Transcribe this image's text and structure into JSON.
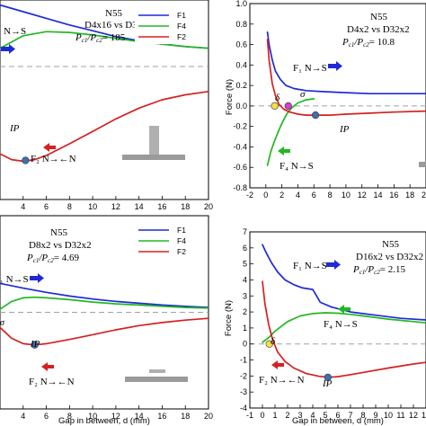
{
  "chart_data": [
    {
      "type": "line",
      "panel": "top-left",
      "annotations": {
        "n55": "N55",
        "title": "D4x16 vs D32x2",
        "ratio_prefix": "P",
        "ratio_value": "= 185",
        "ip": "IP"
      },
      "legend": [
        "F1",
        "F4",
        "F2"
      ],
      "arrow_labels": [
        {
          "text": "N→S",
          "color": "#1f2ad6",
          "dir": "right"
        },
        {
          "text": "F₂ N→←N",
          "color": "#d62020",
          "dir": "left"
        }
      ],
      "xlim": [
        2,
        20
      ],
      "ylim": [
        -1.6,
        0.8
      ],
      "xticks": [
        4,
        6,
        8,
        10,
        12,
        14,
        16,
        18,
        20
      ],
      "series": [
        {
          "name": "F1",
          "color": "#1f2ad6",
          "x": [
            0,
            2,
            4,
            6,
            8,
            10,
            12,
            14,
            16,
            18,
            20
          ],
          "y": [
            0.82,
            0.74,
            0.66,
            0.58,
            0.5,
            0.43,
            0.36,
            0.31,
            0.27,
            0.24,
            0.22
          ]
        },
        {
          "name": "F4",
          "color": "#20b820",
          "x": [
            0,
            2,
            4,
            6,
            8,
            10,
            12,
            14,
            16,
            18,
            20
          ],
          "y": [
            -0.05,
            0.22,
            0.37,
            0.42,
            0.41,
            0.38,
            0.34,
            0.3,
            0.27,
            0.24,
            0.22
          ]
        },
        {
          "name": "F2",
          "color": "#d62020",
          "x": [
            0,
            1,
            2,
            3,
            4,
            5,
            6,
            8,
            10,
            12,
            14,
            16,
            18,
            20
          ],
          "y": [
            -0.3,
            -0.8,
            -1.05,
            -1.12,
            -1.14,
            -1.12,
            -1.07,
            -0.93,
            -0.78,
            -0.63,
            -0.5,
            -0.4,
            -0.34,
            -0.3
          ]
        }
      ],
      "markers": [
        {
          "label": "IP",
          "x": 4.2,
          "y": -1.13
        }
      ]
    },
    {
      "type": "line",
      "panel": "top-right",
      "annotations": {
        "n55": "N55",
        "title": "D4x2 vs D32x2",
        "ratio_prefix": "P",
        "ratio_value": "= 10.8",
        "ip": "IP",
        "delta": "δ",
        "sigma": "σ"
      },
      "arrow_labels": [
        {
          "text": "F₁ N→S",
          "color": "#1f2ad6",
          "dir": "right"
        },
        {
          "text": "F₄ N→S",
          "color": "#20b820",
          "dir": "left"
        }
      ],
      "ylabel": "Force (N)",
      "xlim": [
        -2,
        20
      ],
      "ylim": [
        -0.8,
        1.0
      ],
      "xticks": [
        -2,
        0,
        2,
        4,
        6,
        8,
        10,
        12,
        14,
        16,
        18,
        20
      ],
      "yticks": [
        -0.8,
        -0.6,
        -0.4,
        -0.2,
        0.0,
        0.2,
        0.4,
        0.6,
        0.8,
        1.0
      ],
      "series": [
        {
          "name": "F1",
          "color": "#1f2ad6",
          "x": [
            0.2,
            0.4,
            0.8,
            1.2,
            1.8,
            2.5,
            3.5,
            5,
            7,
            10,
            13,
            16,
            20
          ],
          "y": [
            0.72,
            0.6,
            0.45,
            0.34,
            0.26,
            0.2,
            0.17,
            0.15,
            0.14,
            0.13,
            0.12,
            0.12,
            0.12
          ]
        },
        {
          "name": "F4",
          "color": "#20b820",
          "x": [
            0.2,
            0.6,
            1.0,
            1.5,
            2.0,
            2.6,
            3.2,
            4.0,
            5.0,
            6.0
          ],
          "y": [
            -0.58,
            -0.45,
            -0.36,
            -0.26,
            -0.17,
            -0.08,
            -0.02,
            0.03,
            0.06,
            0.07
          ]
        },
        {
          "name": "F2",
          "color": "#d62020",
          "x": [
            0.2,
            0.4,
            0.8,
            1.2,
            1.6,
            2.2,
            3.0,
            4.0,
            5.0,
            6.0,
            8.0,
            10,
            13,
            16,
            20
          ],
          "y": [
            0.65,
            0.45,
            0.22,
            0.1,
            0.02,
            -0.03,
            -0.06,
            -0.08,
            -0.09,
            -0.09,
            -0.09,
            -0.08,
            -0.07,
            -0.06,
            -0.05
          ]
        }
      ],
      "markers": [
        {
          "label": "δ",
          "x": 1.1,
          "y": 0.0,
          "color": "#f2e04a"
        },
        {
          "label": "σ",
          "x": 2.8,
          "y": 0.0,
          "color": "#d83ad8"
        },
        {
          "label": "IP",
          "x": 6.2,
          "y": -0.09,
          "color": "#3f6fb0"
        }
      ]
    },
    {
      "type": "line",
      "panel": "bottom-left",
      "annotations": {
        "n55": "N55",
        "title": "D8x2 vs D32x2",
        "ratio_prefix": "P",
        "ratio_value": "= 4.69",
        "ip": "IP"
      },
      "legend": [
        "F1",
        "F4",
        "F2"
      ],
      "arrow_labels": [
        {
          "text": "₁ N→S",
          "color": "#1f2ad6",
          "dir": "right"
        },
        {
          "text": "F₂ N→←N",
          "color": "#d62020",
          "dir": "left"
        }
      ],
      "xlabel": "Gap in between, d (mm)",
      "xlim": [
        2,
        20
      ],
      "ylim": [
        -1.6,
        1.6
      ],
      "xticks": [
        4,
        6,
        8,
        10,
        12,
        14,
        16,
        18,
        20
      ],
      "series": [
        {
          "name": "F1",
          "color": "#1f2ad6",
          "x": [
            2,
            4,
            6,
            8,
            10,
            12,
            14,
            16,
            18,
            20
          ],
          "y": [
            0.48,
            0.4,
            0.33,
            0.27,
            0.22,
            0.18,
            0.15,
            0.12,
            0.1,
            0.08
          ]
        },
        {
          "name": "F4",
          "color": "#20b820",
          "x": [
            2,
            3,
            4,
            5,
            6,
            8,
            10,
            12,
            14,
            16,
            18,
            20
          ],
          "y": [
            0.05,
            0.18,
            0.24,
            0.25,
            0.24,
            0.21,
            0.17,
            0.14,
            0.12,
            0.1,
            0.08,
            0.07
          ]
        },
        {
          "name": "F2",
          "color": "#d62020",
          "x": [
            2,
            3,
            4,
            5,
            6,
            8,
            10,
            12,
            14,
            16,
            18,
            20
          ],
          "y": [
            -0.25,
            -0.43,
            -0.52,
            -0.54,
            -0.52,
            -0.45,
            -0.37,
            -0.29,
            -0.22,
            -0.17,
            -0.13,
            -0.1
          ]
        }
      ],
      "markers": [
        {
          "label": "IP",
          "x": 5.0,
          "y": -0.54,
          "color": "#3f6fb0"
        }
      ]
    },
    {
      "type": "line",
      "panel": "bottom-right",
      "annotations": {
        "n55": "N55",
        "title": "D16x2 vs D32x2",
        "ratio_prefix": "P",
        "ratio_value": "= 2.15",
        "ip": "IP",
        "delta": "δ"
      },
      "arrow_labels": [
        {
          "text": "F₁ N→S",
          "color": "#1f2ad6",
          "dir": "right"
        },
        {
          "text": "F₄ N→S",
          "color": "#20b820",
          "dir": "left"
        },
        {
          "text": "F₂ N→←N",
          "color": "#d62020",
          "dir": "left"
        }
      ],
      "xlabel": "Gap in between, d (mm)",
      "ylabel": "Force (N)",
      "xlim": [
        -1,
        13
      ],
      "ylim": [
        -4,
        7
      ],
      "xticks": [
        -1,
        0,
        1,
        2,
        3,
        4,
        5,
        6,
        7,
        8,
        9,
        10,
        11,
        12,
        13
      ],
      "yticks": [
        -4,
        -3,
        -2,
        -1,
        0,
        1,
        2,
        3,
        4,
        5,
        6,
        7
      ],
      "series": [
        {
          "name": "F1",
          "color": "#1f2ad6",
          "x": [
            0,
            0.3,
            0.7,
            1.2,
            1.8,
            2.5,
            3.2,
            4.0,
            4.6,
            5.5,
            7,
            9,
            11,
            13
          ],
          "y": [
            6.2,
            5.7,
            5.1,
            4.5,
            4.0,
            3.7,
            3.5,
            3.4,
            2.6,
            2.3,
            2.0,
            1.8,
            1.6,
            1.5
          ]
        },
        {
          "name": "F4",
          "color": "#20b820",
          "x": [
            0,
            0.5,
            1.0,
            1.5,
            2.0,
            3.0,
            4.0,
            5.0,
            6.0,
            7.0,
            8,
            10,
            12,
            13
          ],
          "y": [
            0.1,
            0.4,
            0.8,
            1.1,
            1.4,
            1.75,
            1.9,
            1.95,
            1.92,
            1.85,
            1.75,
            1.55,
            1.4,
            1.32
          ]
        },
        {
          "name": "F2",
          "color": "#d62020",
          "x": [
            0,
            0.2,
            0.5,
            0.8,
            1.2,
            1.8,
            2.5,
            3.5,
            4.5,
            5.2,
            6.0,
            7.0,
            8,
            10,
            12,
            13
          ],
          "y": [
            3.9,
            2.5,
            1.2,
            0.3,
            -0.5,
            -1.1,
            -1.5,
            -1.85,
            -2.02,
            -2.08,
            -2.04,
            -1.92,
            -1.78,
            -1.5,
            -1.25,
            -1.15
          ]
        }
      ],
      "markers": [
        {
          "label": "δ",
          "x": 0.55,
          "y": 0.0,
          "color": "#f2e04a"
        },
        {
          "label": "IP",
          "x": 5.2,
          "y": -2.08,
          "color": "#3f6fb0"
        }
      ]
    }
  ],
  "colors": {
    "f1": "#1f2ad6",
    "f4": "#20b820",
    "f2": "#d62020",
    "zero_line": "#a0a0a0",
    "magnet": "#9a9a9a"
  }
}
